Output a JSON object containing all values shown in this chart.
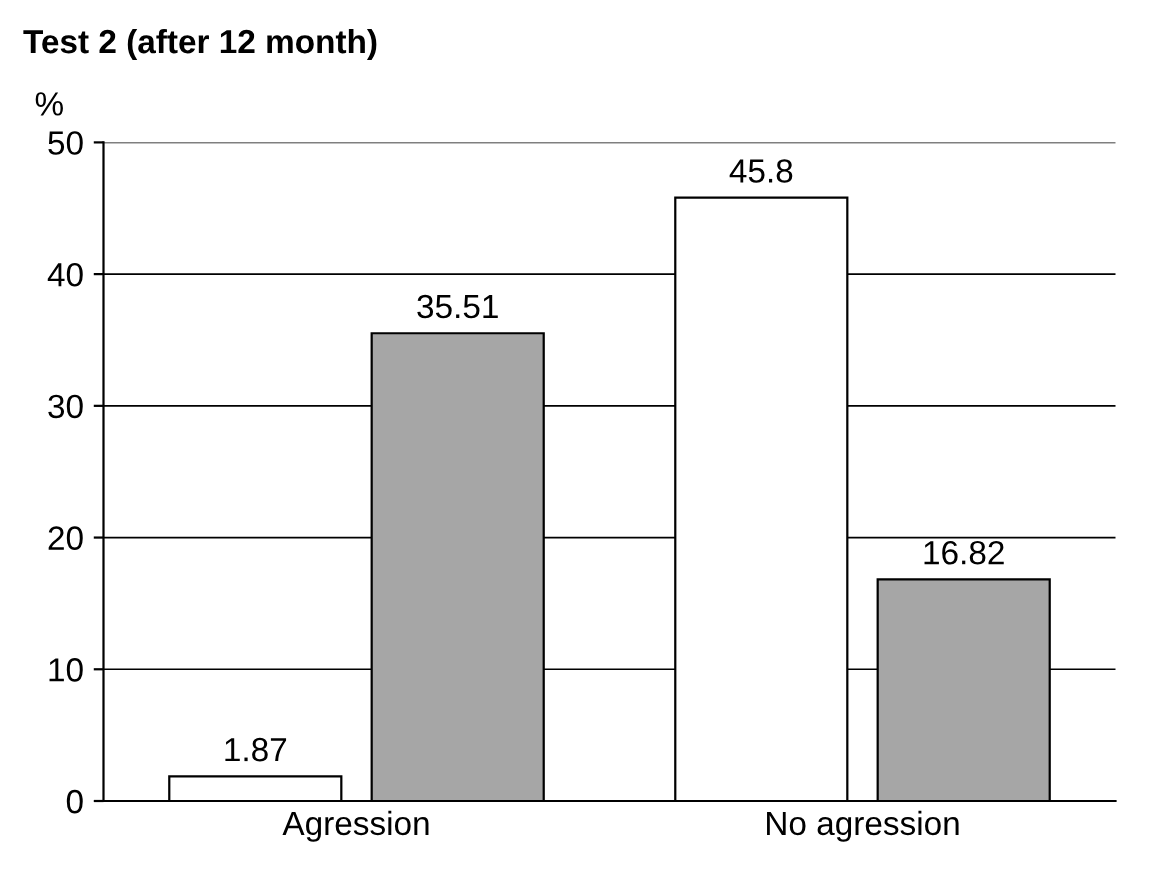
{
  "chart_data": {
    "type": "bar",
    "title": "Test 2 (after 12 month)",
    "ylabel": "%",
    "categories": [
      "Agression",
      "No agression"
    ],
    "series": [
      {
        "color": "#ffffff",
        "values": [
          1.87,
          45.8
        ]
      },
      {
        "color": "#a6a6a6",
        "values": [
          35.51,
          16.82
        ]
      }
    ],
    "ylim": [
      0,
      50
    ],
    "yticks": [
      0,
      10,
      20,
      30,
      40,
      50
    ],
    "grid": "y",
    "data_labels": true
  }
}
